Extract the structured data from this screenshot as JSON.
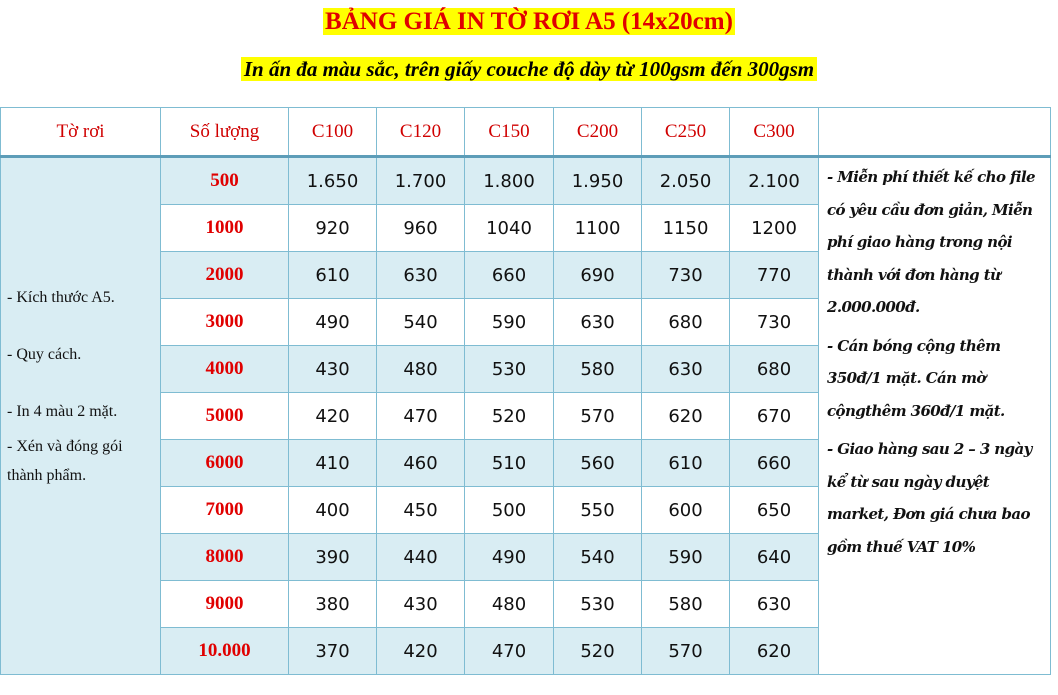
{
  "title": "BẢNG GIÁ IN TỜ RƠI A5 (14x20cm)",
  "subtitle": "In ấn đa màu sắc, trên giấy couche độ dày từ 100gsm đến 300gsm",
  "colors": {
    "title_text": "#e00000",
    "highlight": "#ffff00",
    "row_band": "#d9edf3",
    "border": "#7fbcd2"
  },
  "table": {
    "headers": [
      "Tờ rơi",
      "Số lượng",
      "C100",
      "C120",
      "C150",
      "C200",
      "C250",
      "C300"
    ],
    "spec_lines": [
      "- Kích thước A5.",
      "- Quy cách.",
      "- In 4 màu 2 mặt.",
      "- Xén và đóng gói thành phẩm."
    ],
    "rows": [
      {
        "qty": "500",
        "prices": [
          "1.650",
          "1.700",
          "1.800",
          "1.950",
          "2.050",
          "2.100"
        ]
      },
      {
        "qty": "1000",
        "prices": [
          "920",
          "960",
          "1040",
          "1100",
          "1150",
          "1200"
        ]
      },
      {
        "qty": "2000",
        "prices": [
          "610",
          "630",
          "660",
          "690",
          "730",
          "770"
        ]
      },
      {
        "qty": "3000",
        "prices": [
          "490",
          "540",
          "590",
          "630",
          "680",
          "730"
        ]
      },
      {
        "qty": "4000",
        "prices": [
          "430",
          "480",
          "530",
          "580",
          "630",
          "680"
        ]
      },
      {
        "qty": "5000",
        "prices": [
          "420",
          "470",
          "520",
          "570",
          "620",
          "670"
        ]
      },
      {
        "qty": "6000",
        "prices": [
          "410",
          "460",
          "510",
          "560",
          "610",
          "660"
        ]
      },
      {
        "qty": "7000",
        "prices": [
          "400",
          "450",
          "500",
          "550",
          "600",
          "650"
        ]
      },
      {
        "qty": "8000",
        "prices": [
          "390",
          "440",
          "490",
          "540",
          "590",
          "640"
        ]
      },
      {
        "qty": "9000",
        "prices": [
          "380",
          "430",
          "480",
          "530",
          "580",
          "630"
        ]
      },
      {
        "qty": "10.000",
        "prices": [
          "370",
          "420",
          "470",
          "520",
          "570",
          "620"
        ]
      }
    ],
    "notes": [
      "- Miễn phí thiết kế cho file có yêu cầu đơn giản, Miễn phí giao hàng trong nội thành với đơn hàng từ 2.000.000đ.",
      "- Cán bóng cộng thêm 350đ/1 mặt. Cán mờ cộngthêm 360đ/1 mặt.",
      "- Giao hàng sau 2 – 3 ngày kể từ sau ngày duyệt market, Đơn giá chưa bao gồm thuế VAT 10%"
    ]
  }
}
